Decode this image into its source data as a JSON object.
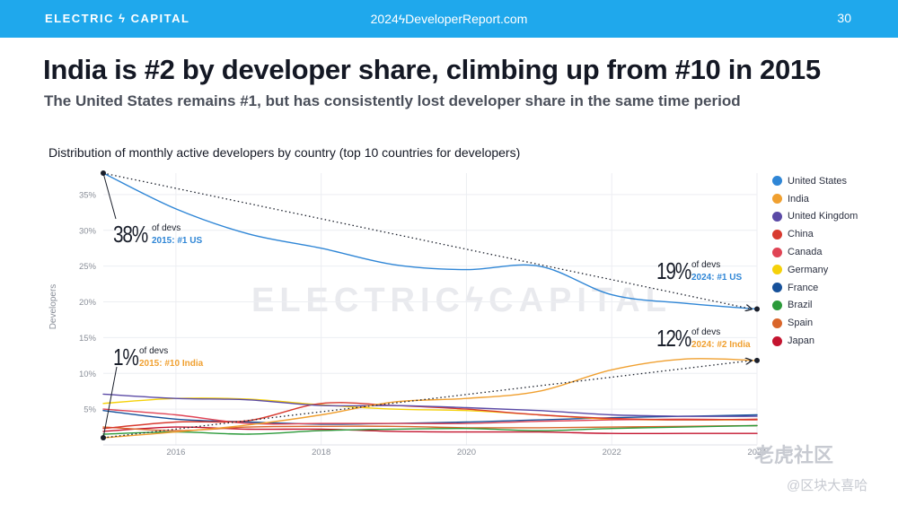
{
  "header": {
    "brand": "ELECTRIC ϟ CAPITAL",
    "site": "2024ϟDeveloperReport.com",
    "page_number": "30"
  },
  "title": "India is #2 by developer share, climbing up from #10 in 2015",
  "subtitle": "The United States remains #1, but has consistently lost developer share in the same time period",
  "watermark": "ELECTRICϟCAPITAL",
  "watermark_cn": "老虎社区",
  "watermark_cn2": "@区块大喜哈",
  "callouts": [
    {
      "value": "38%",
      "line1": "of devs",
      "line2": "2015: #1 US",
      "color": "#2f86d6"
    },
    {
      "value": "1%",
      "line1": "of devs",
      "line2": "2015: #10 India",
      "color": "#f0a030"
    },
    {
      "value": "19%",
      "line1": "of devs",
      "line2": "2024: #1 US",
      "color": "#2f86d6"
    },
    {
      "value": "12%",
      "line1": "of devs",
      "line2": "2024: #2 India",
      "color": "#f0a030"
    }
  ],
  "chart_data": {
    "type": "line",
    "title": "Distribution of monthly active developers by country (top 10 countries for developers)",
    "xlabel": "",
    "ylabel": "Developers",
    "xlim": [
      2015,
      2024
    ],
    "ylim": [
      0,
      38
    ],
    "x_ticks": [
      "2016",
      "2018",
      "2020",
      "2022",
      "2024"
    ],
    "y_ticks": [
      "5%",
      "10%",
      "15%",
      "20%",
      "25%",
      "30%",
      "35%"
    ],
    "grid": true,
    "legend_position": "right",
    "x": [
      2015,
      2016,
      2017,
      2018,
      2019,
      2020,
      2021,
      2022,
      2023,
      2024
    ],
    "series": [
      {
        "name": "United States",
        "color": "#2f86d6",
        "values": [
          38.0,
          33.0,
          29.5,
          27.5,
          25.2,
          24.5,
          25.0,
          21.0,
          19.8,
          19.0
        ]
      },
      {
        "name": "India",
        "color": "#f0a030",
        "values": [
          1.0,
          1.8,
          2.8,
          4.2,
          6.0,
          6.5,
          7.5,
          10.5,
          12.0,
          11.8
        ]
      },
      {
        "name": "United Kingdom",
        "color": "#5b4aa6",
        "values": [
          7.1,
          6.5,
          6.3,
          5.5,
          5.5,
          5.2,
          4.8,
          4.2,
          4.0,
          4.0
        ]
      },
      {
        "name": "China",
        "color": "#d83a2f",
        "values": [
          2.3,
          3.2,
          3.4,
          5.8,
          5.5,
          5.0,
          4.2,
          3.7,
          3.5,
          3.6
        ]
      },
      {
        "name": "Canada",
        "color": "#e04455",
        "values": [
          5.0,
          4.2,
          3.0,
          3.0,
          3.0,
          3.0,
          3.3,
          3.5,
          3.6,
          3.5
        ]
      },
      {
        "name": "Germany",
        "color": "#f5d10a",
        "values": [
          5.8,
          6.5,
          6.4,
          5.6,
          5.0,
          4.8,
          4.2,
          3.6,
          3.5,
          3.5
        ]
      },
      {
        "name": "France",
        "color": "#17519a",
        "values": [
          4.8,
          3.6,
          3.2,
          2.9,
          3.0,
          3.2,
          3.5,
          3.8,
          4.0,
          4.2
        ]
      },
      {
        "name": "Brazil",
        "color": "#2b9a3a",
        "values": [
          1.5,
          1.8,
          1.5,
          2.0,
          2.2,
          2.3,
          2.0,
          2.3,
          2.5,
          2.7
        ]
      },
      {
        "name": "Spain",
        "color": "#d9652a",
        "values": [
          2.5,
          2.0,
          2.5,
          2.6,
          2.6,
          2.4,
          2.4,
          2.5,
          2.6,
          2.7
        ]
      },
      {
        "name": "Japan",
        "color": "#c4142f",
        "values": [
          1.9,
          2.5,
          2.2,
          2.2,
          1.9,
          1.8,
          1.8,
          1.6,
          1.6,
          1.6
        ]
      }
    ]
  }
}
